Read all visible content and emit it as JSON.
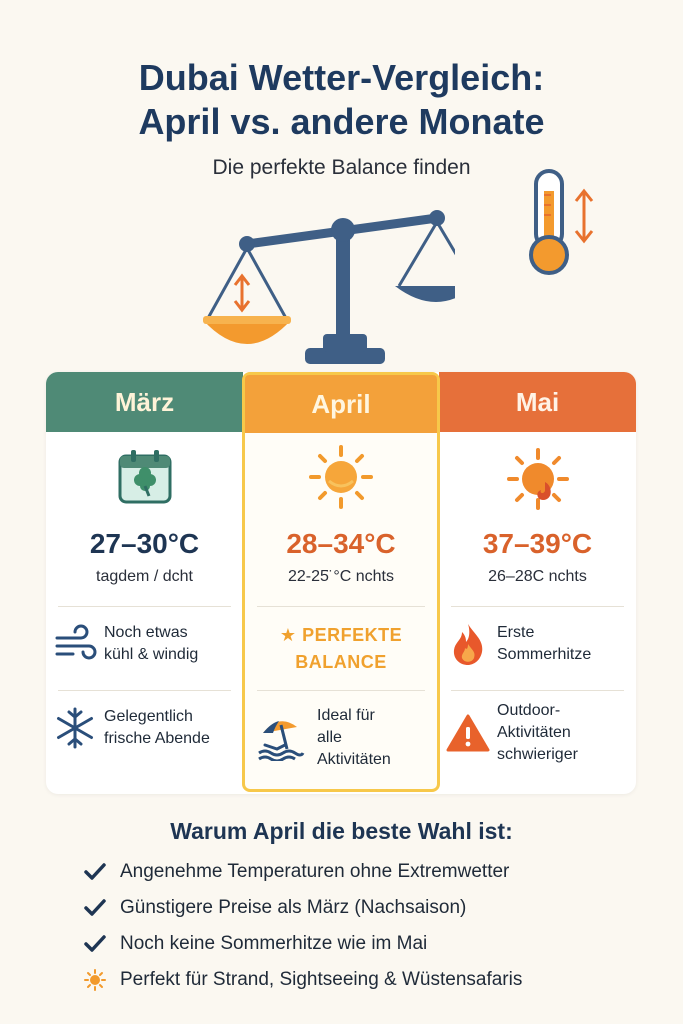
{
  "header": {
    "title_line1": "Dubai Wetter-Vergleich:",
    "title_line2": "April vs. andere Monate",
    "subtitle": "Die perfekte Balance finden"
  },
  "icons": {
    "scale": "balance-scale-icon",
    "thermometer": "thermometer-icon"
  },
  "colors": {
    "maerz": "#4f8a76",
    "april": "#f3a13a",
    "april_border": "#f7c84a",
    "mai": "#e6703a",
    "navy": "#1e3553"
  },
  "months": {
    "maerz": {
      "name": "März",
      "temp": "27–30°C",
      "night": "tagdem / dcht",
      "feature1": [
        "Noch etwas",
        "kühl & windig"
      ],
      "feature2": [
        "Gelegentlich",
        "frische Abende"
      ]
    },
    "april": {
      "name": "April",
      "temp": "28–34°C",
      "night": "22-25̈ °C nchts",
      "badge": [
        "PERFEKTE",
        "BALANCE"
      ],
      "feature1": [
        "Ideal für",
        "alle",
        "Aktivitäten"
      ]
    },
    "mai": {
      "name": "Mai",
      "temp": "37–39°C",
      "night": "26–28C nchts",
      "feature1": [
        "Erste",
        "Sommerhitze"
      ],
      "feature2": [
        "Outdoor-",
        "Aktivitäten",
        "schwieriger"
      ]
    }
  },
  "why": {
    "title": "Warum April die beste Wahl ist:",
    "items": [
      "Angenehme Temperaturen ohne Extremwetter",
      "Günstigere Preise als März (Nachsaison)",
      "Noch keine Sommerhitze wie im Mai",
      "Perfekt für Strand, Sightseeing & Wüstensafaris"
    ]
  }
}
